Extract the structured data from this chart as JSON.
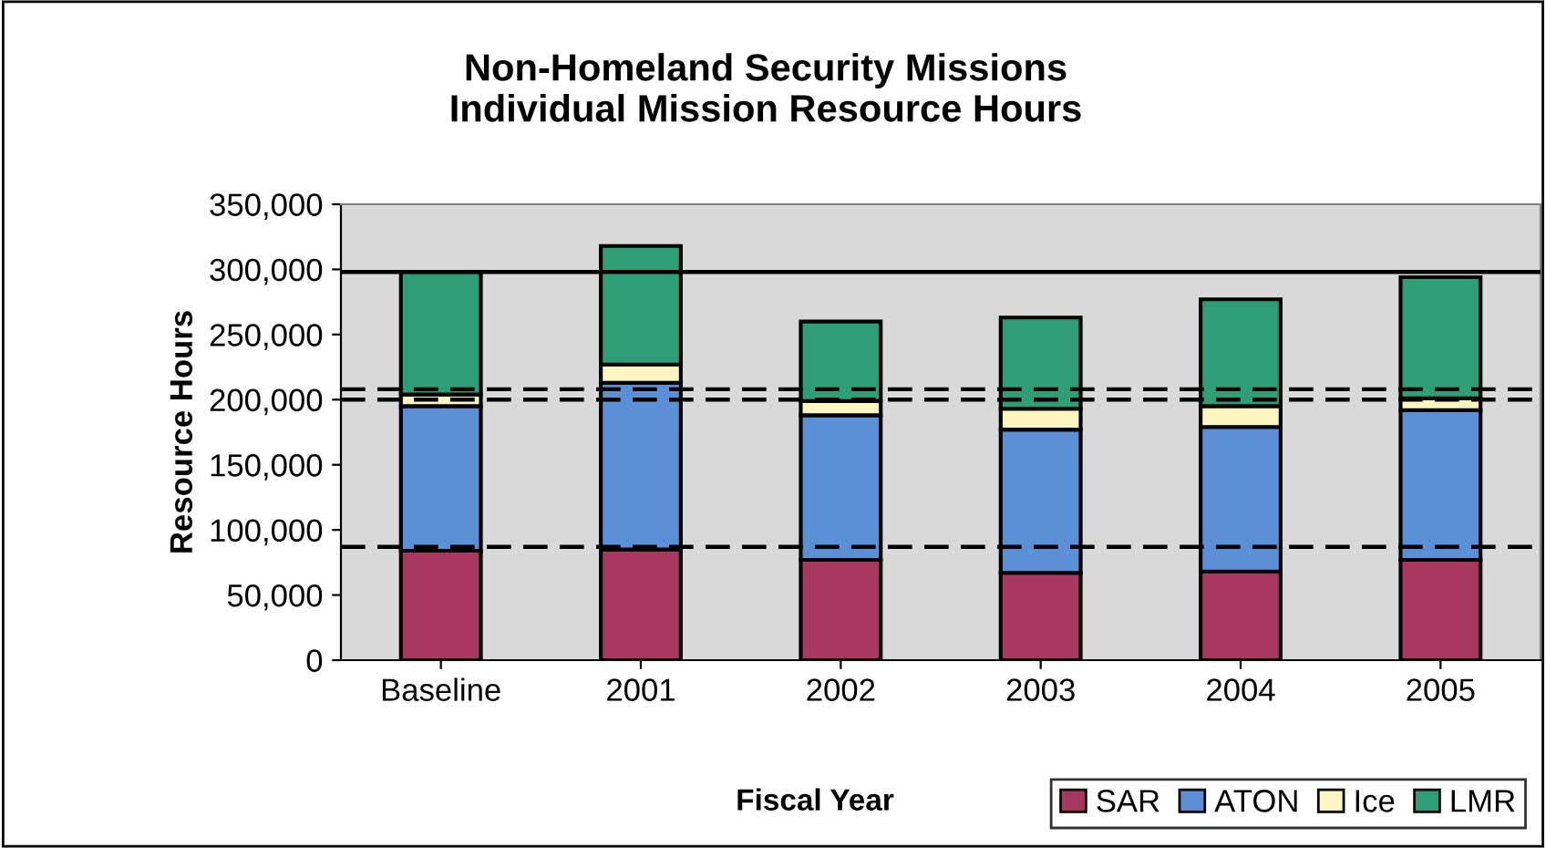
{
  "chart_data": {
    "type": "bar",
    "title": "Non-Homeland Security Missions\nIndividual Mission Resource Hours",
    "xlabel": "Fiscal Year",
    "ylabel": "Resource Hours",
    "categories": [
      "Baseline",
      "2001",
      "2002",
      "2003",
      "2004",
      "2005"
    ],
    "stacked": true,
    "series": [
      {
        "name": "SAR",
        "color": "#a8385f",
        "values": [
          84000,
          85000,
          77000,
          67000,
          68000,
          77000
        ]
      },
      {
        "name": "ATON",
        "color": "#5b8fd6",
        "values": [
          111000,
          128000,
          111000,
          110000,
          111000,
          115000
        ]
      },
      {
        "name": "Ice",
        "color": "#fdf5c0",
        "values": [
          9000,
          14000,
          11000,
          16000,
          16000,
          9000
        ]
      },
      {
        "name": "LMR",
        "color": "#2e9e78",
        "values": [
          94000,
          91000,
          61000,
          70000,
          82000,
          93000
        ]
      }
    ],
    "ylim": [
      0,
      350000
    ],
    "yticks": [
      {
        "value": 0,
        "label": "0"
      },
      {
        "value": 50000,
        "label": "50,000"
      },
      {
        "value": 100000,
        "label": "100,000"
      },
      {
        "value": 150000,
        "label": "150,000"
      },
      {
        "value": 200000,
        "label": "200,000"
      },
      {
        "value": 250000,
        "label": "250,000"
      },
      {
        "value": 300000,
        "label": "300,000"
      },
      {
        "value": 350000,
        "label": "350,000"
      }
    ],
    "ref_lines": [
      {
        "axis": "y",
        "value": 298000,
        "color": "#000000",
        "line_style": "solid"
      },
      {
        "axis": "y",
        "value": 208000,
        "color": "#000000",
        "line_style": "dashed"
      },
      {
        "axis": "y",
        "value": 200000,
        "color": "#000000",
        "line_style": "dashed"
      },
      {
        "axis": "y",
        "value": 87000,
        "color": "#000000",
        "line_style": "dashed"
      }
    ],
    "grid": false,
    "legend": "bottom right"
  }
}
